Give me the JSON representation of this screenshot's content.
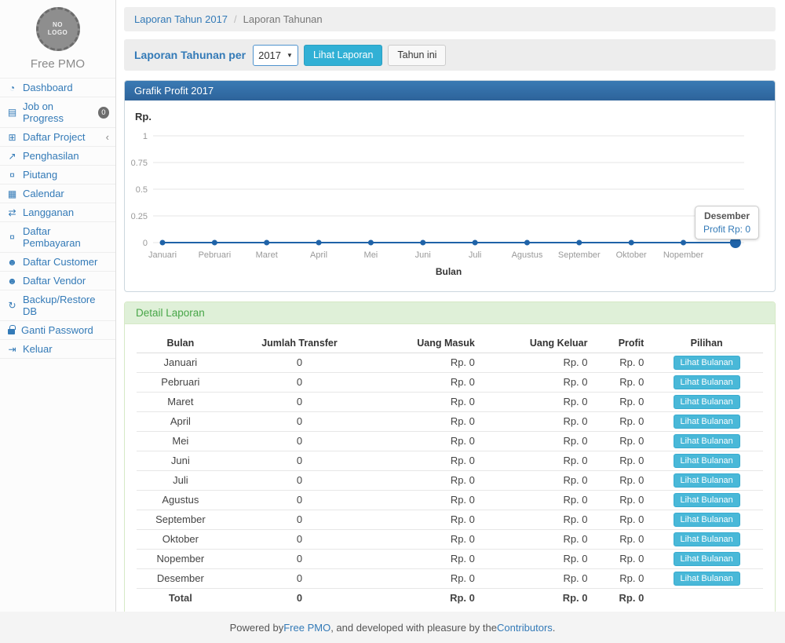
{
  "app": {
    "brand": "Free PMO",
    "logo": {
      "line1": "NO",
      "line2": "LOGO"
    }
  },
  "icons": {
    "dashboard-icon": "◔",
    "tasks-icon": "▤",
    "table-icon": "⊞",
    "line-chart-icon": "↗",
    "money-icon": "¤",
    "calendar-icon": "▦",
    "exchange-icon": "⇄",
    "users-icon": "☻",
    "refresh-icon": "↻",
    "lock-icon": "css-lock",
    "sign-out-icon": "⇥",
    "chevron-left": "‹",
    "caret-down": "▼"
  },
  "sidebar": {
    "items": [
      {
        "name": "dashboard",
        "icon": "dashboard-icon",
        "label": "Dashboard"
      },
      {
        "name": "job-on-progress",
        "icon": "tasks-icon",
        "label": "Job on Progress",
        "badge": "0"
      },
      {
        "name": "daftar-project",
        "icon": "table-icon",
        "label": "Daftar Project",
        "chevron": true
      },
      {
        "name": "penghasilan",
        "icon": "line-chart-icon",
        "label": "Penghasilan"
      },
      {
        "name": "piutang",
        "icon": "money-icon",
        "label": "Piutang"
      },
      {
        "name": "calendar",
        "icon": "calendar-icon",
        "label": "Calendar"
      },
      {
        "name": "langganan",
        "icon": "exchange-icon",
        "label": "Langganan"
      },
      {
        "name": "daftar-pembayaran",
        "icon": "money-icon",
        "label": "Daftar Pembayaran"
      },
      {
        "name": "daftar-customer",
        "icon": "users-icon",
        "label": "Daftar Customer"
      },
      {
        "name": "daftar-vendor",
        "icon": "users-icon",
        "label": "Daftar Vendor"
      },
      {
        "name": "backup-restore-db",
        "icon": "refresh-icon",
        "label": "Backup/Restore DB"
      },
      {
        "name": "ganti-password",
        "icon": "lock-icon",
        "label": "Ganti Password"
      },
      {
        "name": "keluar",
        "icon": "sign-out-icon",
        "label": "Keluar"
      }
    ]
  },
  "breadcrumb": {
    "link": "Laporan Tahun 2017",
    "separator": "/",
    "current": "Laporan Tahunan"
  },
  "controls": {
    "label": "Laporan Tahunan per",
    "year_select": {
      "value": "2017"
    },
    "view_button": "Lihat Laporan",
    "this_year_button": "Tahun ini"
  },
  "chart_panel": {
    "title": "Grafik Profit 2017"
  },
  "chart_data": {
    "type": "line",
    "title": "Grafik Profit 2017",
    "x": [
      "Januari",
      "Pebruari",
      "Maret",
      "April",
      "Mei",
      "Juni",
      "Juli",
      "Agustus",
      "September",
      "Oktober",
      "Nopember",
      "Desember"
    ],
    "x_tick_labels": [
      "Januari",
      "Pebruari",
      "Maret",
      "April",
      "Mei",
      "Juni",
      "Juli",
      "Agustus",
      "September",
      "Oktober",
      "Nopember"
    ],
    "series": [
      {
        "name": "Profit",
        "values": [
          0,
          0,
          0,
          0,
          0,
          0,
          0,
          0,
          0,
          0,
          0,
          0
        ]
      }
    ],
    "xlabel": "Bulan",
    "ylabel": "Rp.",
    "y_ticks": [
      1,
      0.75,
      0.5,
      0.25,
      0
    ],
    "ylim": [
      0,
      1
    ],
    "grid": true,
    "legend": "none",
    "line_color": "#1f63a8",
    "highlight": {
      "index": 11,
      "label": "Desember",
      "value_text": "Profit Rp: 0"
    }
  },
  "detail": {
    "title": "Detail Laporan",
    "columns": [
      "Bulan",
      "Jumlah Transfer",
      "Uang Masuk",
      "Uang Keluar",
      "Profit",
      "Pilihan"
    ],
    "action_label": "Lihat Bulanan",
    "rows": [
      [
        "Januari",
        "0",
        "Rp. 0",
        "Rp. 0",
        "Rp. 0"
      ],
      [
        "Pebruari",
        "0",
        "Rp. 0",
        "Rp. 0",
        "Rp. 0"
      ],
      [
        "Maret",
        "0",
        "Rp. 0",
        "Rp. 0",
        "Rp. 0"
      ],
      [
        "April",
        "0",
        "Rp. 0",
        "Rp. 0",
        "Rp. 0"
      ],
      [
        "Mei",
        "0",
        "Rp. 0",
        "Rp. 0",
        "Rp. 0"
      ],
      [
        "Juni",
        "0",
        "Rp. 0",
        "Rp. 0",
        "Rp. 0"
      ],
      [
        "Juli",
        "0",
        "Rp. 0",
        "Rp. 0",
        "Rp. 0"
      ],
      [
        "Agustus",
        "0",
        "Rp. 0",
        "Rp. 0",
        "Rp. 0"
      ],
      [
        "September",
        "0",
        "Rp. 0",
        "Rp. 0",
        "Rp. 0"
      ],
      [
        "Oktober",
        "0",
        "Rp. 0",
        "Rp. 0",
        "Rp. 0"
      ],
      [
        "Nopember",
        "0",
        "Rp. 0",
        "Rp. 0",
        "Rp. 0"
      ],
      [
        "Desember",
        "0",
        "Rp. 0",
        "Rp. 0",
        "Rp. 0"
      ]
    ],
    "total": [
      "Total",
      "0",
      "Rp. 0",
      "Rp. 0",
      "Rp. 0"
    ]
  },
  "footer": {
    "prefix": "Powered by ",
    "link1": "Free PMO",
    "middle": ", and developed with pleasure by the ",
    "link2": "Contributors",
    "suffix": "."
  },
  "colors": {
    "link_blue": "#337ab7",
    "chart_line": "#1f63a8",
    "info_button": "#31b0d5",
    "row_button": "#49b8d8",
    "panel_header_blue_top": "#3a7ab4",
    "panel_header_blue_bottom": "#2d639a",
    "success_header_bg": "#dff0d8",
    "success_header_text": "#48a648",
    "badge_gray": "#6e6e6e"
  }
}
